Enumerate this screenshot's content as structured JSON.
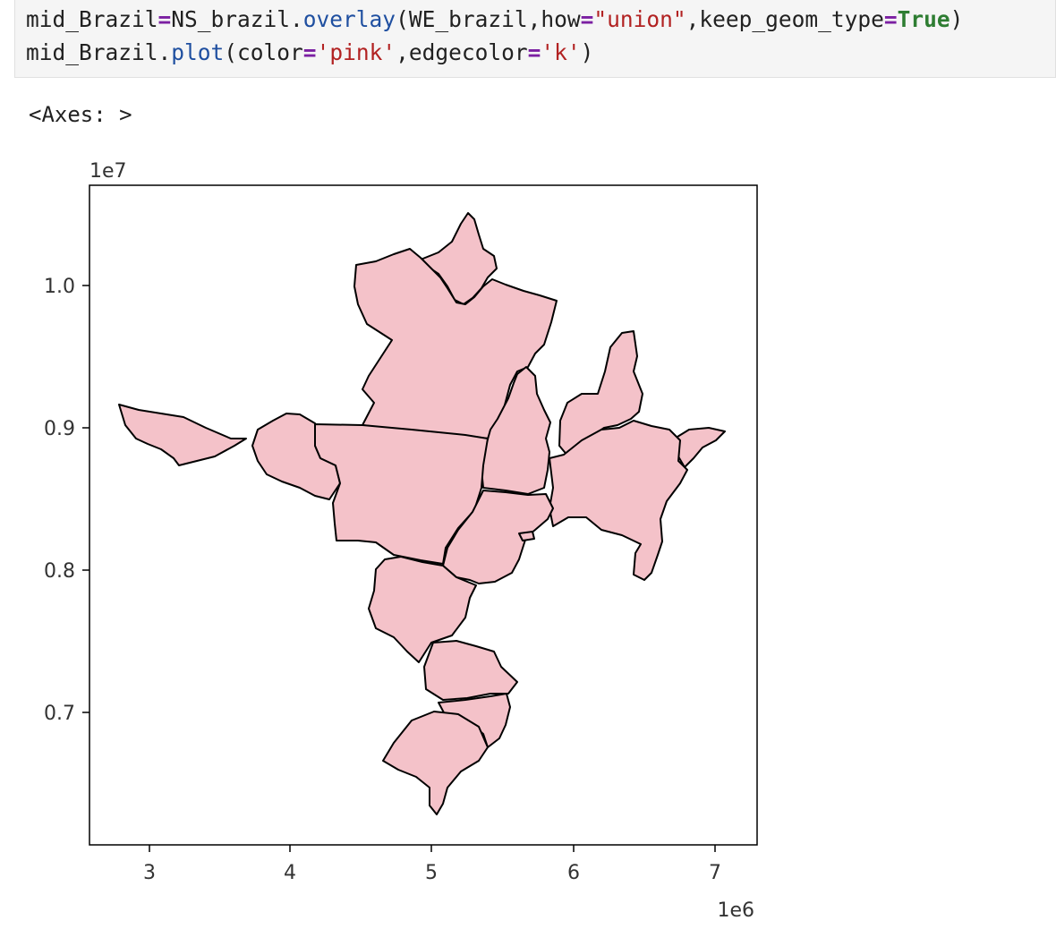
{
  "code_cell": {
    "line1": {
      "t1": "mid_Brazil",
      "t2": "=",
      "t3": "NS_brazil.",
      "t4": "overlay",
      "t5": "(WE_brazil,how",
      "t6": "=",
      "t7": "\"union\"",
      "t8": ",keep_geom_type",
      "t9": "=",
      "t10": "True",
      "t11": ")"
    },
    "line2": {
      "t1": "mid_Brazil.",
      "t2": "plot",
      "t3": "(color",
      "t4": "=",
      "t5": "'pink'",
      "t6": ",edgecolor",
      "t7": "=",
      "t8": "'k'",
      "t9": ")"
    }
  },
  "output": {
    "repr": "<Axes: >"
  },
  "chart_data": {
    "type": "map",
    "fill_color": "#f4c2c9",
    "edge_color": "#000000",
    "xlim": [
      2.6,
      7.3
    ],
    "ylim": [
      6.15,
      10.7
    ],
    "x_ticks": [
      "3",
      "4",
      "5",
      "6",
      "7"
    ],
    "y_ticks": [
      "0.7",
      "0.8",
      "0.9",
      "1.0"
    ],
    "x_tick_values": [
      3,
      4,
      5,
      6,
      7
    ],
    "y_tick_values": [
      7.0,
      8.0,
      9.0,
      10.0
    ],
    "x_offset_label": "1e6",
    "y_offset_label": "1e7",
    "grid": false
  }
}
